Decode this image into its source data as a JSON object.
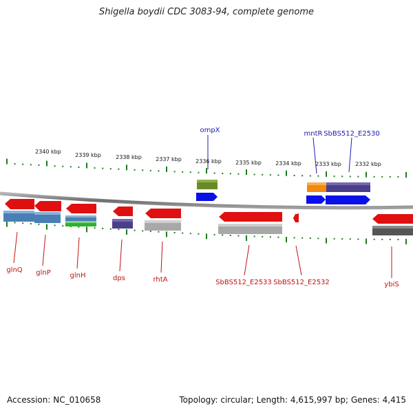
{
  "title": "Shigella boydii CDC 3083-94, complete genome",
  "accession": "Accession: NC_010658",
  "topology": "Topology: circular; Length: 4,615,997 bp; Genes: 4,415",
  "colors": {
    "backbone": "#7a7a7a",
    "tick": "#1e7a1e",
    "forward_label": "#1a1ab0",
    "reverse_label": "#c01010",
    "gene": "#e01010",
    "cds_blue": "#4a7fb5",
    "cds_purple": "#4b3f8a",
    "cds_gray": "#a8a8a8",
    "cds_green": "#2fb02f",
    "cds_olive": "#6a8a2a",
    "cds_orange": "#f08a10",
    "cds_dark": "#555555",
    "forward_gene": "#0a10e8"
  },
  "scale": {
    "top_labels": [
      "2340 kbp",
      "2339 kbp",
      "2338 kbp",
      "2337 kbp",
      "2336 kbp",
      "2335 kbp",
      "2334 kbp",
      "2333 kbp",
      "2332 kbp"
    ]
  },
  "forward_labels": [
    "ompX",
    "mntR",
    "SbBS512_E2530"
  ],
  "reverse_labels": [
    "glnQ",
    "glnP",
    "glnH",
    "dps",
    "rhtA",
    "SbBS512_E2533",
    "SbBS512_E2532",
    "ybiS"
  ]
}
